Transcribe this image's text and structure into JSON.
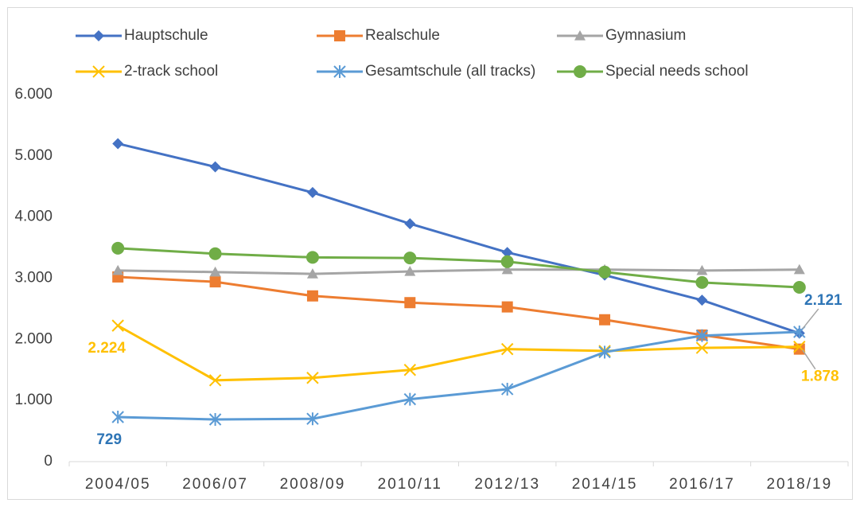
{
  "chart_data": {
    "type": "line",
    "categories": [
      "2004/05",
      "2006/07",
      "2008/09",
      "2010/11",
      "2012/13",
      "2014/15",
      "2016/17",
      "2018/19"
    ],
    "series": [
      {
        "name": "Hauptschule",
        "color": "#4472c4",
        "marker": "diamond",
        "values": [
          5200,
          4820,
          4400,
          3890,
          3420,
          3050,
          2640,
          2100
        ]
      },
      {
        "name": "Realschule",
        "color": "#ed7d31",
        "marker": "square",
        "values": [
          3020,
          2940,
          2710,
          2600,
          2530,
          2320,
          2070,
          1840
        ]
      },
      {
        "name": "Gymnasium",
        "color": "#a5a5a5",
        "marker": "triangle",
        "values": [
          3125,
          3100,
          3070,
          3110,
          3140,
          3140,
          3125,
          3140
        ]
      },
      {
        "name": "2-track school",
        "color": "#ffc000",
        "marker": "x",
        "label_color": "#ffc000",
        "values": [
          2224,
          1330,
          1370,
          1500,
          1840,
          1810,
          1860,
          1878
        ],
        "value_labels": [
          "2.224",
          null,
          null,
          null,
          null,
          null,
          null,
          "1.878"
        ]
      },
      {
        "name": "Gesamtschule (all tracks)",
        "color": "#5b9bd5",
        "marker": "star",
        "label_color": "#2e75b6",
        "values": [
          729,
          690,
          700,
          1020,
          1185,
          1790,
          2060,
          2121
        ],
        "value_labels": [
          "729",
          null,
          null,
          null,
          null,
          null,
          null,
          "2.121"
        ]
      },
      {
        "name": "Special needs school",
        "color": "#70ad47",
        "marker": "circle",
        "values": [
          3490,
          3400,
          3340,
          3330,
          3270,
          3100,
          2930,
          2850
        ]
      }
    ],
    "ylim": [
      0,
      6000
    ],
    "yticks": [
      0,
      {
        "value": 1000,
        "label": "1.000"
      },
      {
        "value": 2000,
        "label": "2.000"
      },
      {
        "value": 3000,
        "label": "3.000"
      },
      {
        "value": 4000,
        "label": "4.000"
      },
      {
        "value": 5000,
        "label": "5.000"
      },
      {
        "value": 6000,
        "label": "6.000"
      }
    ],
    "legend": "top"
  }
}
